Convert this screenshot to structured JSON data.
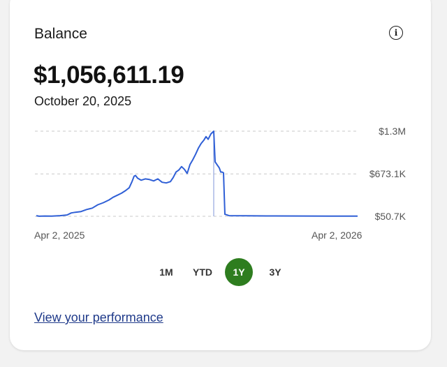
{
  "card": {
    "title": "Balance",
    "info_icon": "info-icon",
    "balance_value": "$1,056,611.19",
    "date": "October 20, 2025"
  },
  "ranges": {
    "items": [
      "1M",
      "YTD",
      "1Y",
      "3Y"
    ],
    "active": "1Y"
  },
  "performance_link": "View your performance",
  "colors": {
    "line": "#2f5fd6",
    "active_range": "#2e7d1f",
    "link": "#1f3a8a"
  },
  "chart_data": {
    "type": "line",
    "x_start_label": "Apr 2, 2025",
    "x_end_label": "Apr 2, 2026",
    "y_tick_labels": [
      "$1.3M",
      "$673.1K",
      "$50.7K"
    ],
    "y_ticks": [
      1300000,
      673100,
      50700
    ],
    "ylim": [
      50700,
      1300000
    ],
    "grid": true,
    "selected_date": "October 20, 2025",
    "series": [
      {
        "values": [
          [
            0,
            60000
          ],
          [
            4,
            52000
          ],
          [
            12,
            55000
          ],
          [
            22,
            54000
          ],
          [
            34,
            60000
          ],
          [
            44,
            70000
          ],
          [
            50,
            100000
          ],
          [
            56,
            110000
          ],
          [
            64,
            120000
          ],
          [
            72,
            150000
          ],
          [
            80,
            170000
          ],
          [
            88,
            220000
          ],
          [
            96,
            250000
          ],
          [
            104,
            290000
          ],
          [
            110,
            330000
          ],
          [
            116,
            360000
          ],
          [
            122,
            390000
          ],
          [
            128,
            430000
          ],
          [
            133,
            470000
          ],
          [
            137,
            560000
          ],
          [
            140,
            640000
          ],
          [
            142,
            650000
          ],
          [
            145,
            610000
          ],
          [
            150,
            580000
          ],
          [
            156,
            600000
          ],
          [
            162,
            590000
          ],
          [
            168,
            570000
          ],
          [
            174,
            600000
          ],
          [
            180,
            550000
          ],
          [
            186,
            540000
          ],
          [
            192,
            560000
          ],
          [
            196,
            620000
          ],
          [
            200,
            700000
          ],
          [
            204,
            730000
          ],
          [
            208,
            780000
          ],
          [
            212,
            740000
          ],
          [
            216,
            680000
          ],
          [
            220,
            810000
          ],
          [
            224,
            880000
          ],
          [
            228,
            960000
          ],
          [
            232,
            1050000
          ],
          [
            236,
            1120000
          ],
          [
            240,
            1170000
          ],
          [
            243,
            1220000
          ],
          [
            246,
            1180000
          ],
          [
            250,
            1260000
          ],
          [
            254,
            1300000
          ],
          [
            256,
            850000
          ],
          [
            258,
            820000
          ],
          [
            262,
            760000
          ],
          [
            264,
            700000
          ],
          [
            266,
            700000
          ],
          [
            268,
            690000
          ],
          [
            270,
            80000
          ],
          [
            276,
            60000
          ],
          [
            300,
            58000
          ],
          [
            340,
            56000
          ],
          [
            380,
            55000
          ],
          [
            420,
            54000
          ],
          [
            460,
            54000
          ]
        ]
      }
    ]
  }
}
